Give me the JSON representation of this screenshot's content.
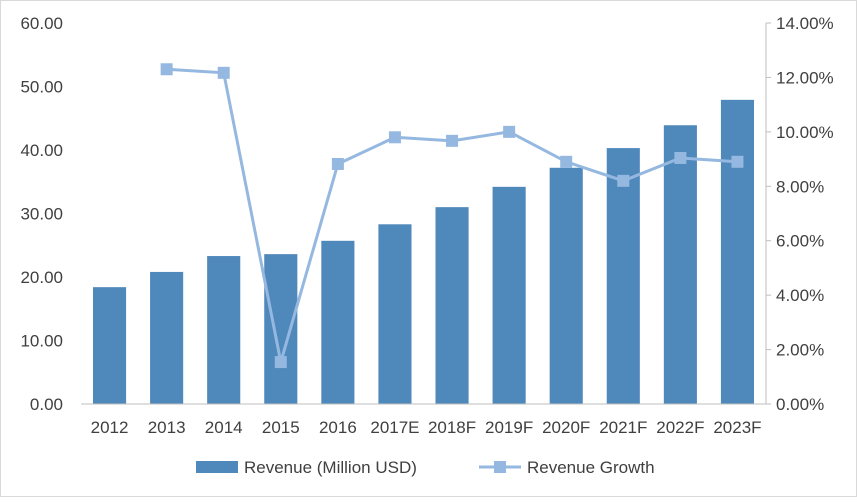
{
  "chart_data": {
    "type": "bar+line",
    "categories": [
      "2012",
      "2013",
      "2014",
      "2015",
      "2016",
      "2017E",
      "2018F",
      "2019F",
      "2020F",
      "2021F",
      "2022F",
      "2023F"
    ],
    "series": [
      {
        "name": "Revenue (Million USD)",
        "type": "bar",
        "axis": "left",
        "color": "#4f88bb",
        "values": [
          18.4,
          20.8,
          23.3,
          23.6,
          25.7,
          28.3,
          31.0,
          34.2,
          37.2,
          40.3,
          43.9,
          47.9
        ]
      },
      {
        "name": "Revenue Growth",
        "type": "line",
        "axis": "right",
        "color": "#95b8e0",
        "values": [
          null,
          12.3,
          12.17,
          1.54,
          8.82,
          9.8,
          9.67,
          10.0,
          8.9,
          8.2,
          9.04,
          8.9
        ]
      }
    ],
    "left_axis": {
      "min": 0,
      "max": 60,
      "ticks": [
        "0.00",
        "10.00",
        "20.00",
        "30.00",
        "40.00",
        "50.00",
        "60.00"
      ]
    },
    "right_axis": {
      "min": 0,
      "max": 14,
      "ticks": [
        "0.00%",
        "2.00%",
        "4.00%",
        "6.00%",
        "8.00%",
        "10.00%",
        "12.00%",
        "14.00%"
      ]
    },
    "legend": {
      "position": "bottom",
      "items": [
        "Revenue (Million USD)",
        "Revenue Growth"
      ]
    },
    "grid": false
  }
}
